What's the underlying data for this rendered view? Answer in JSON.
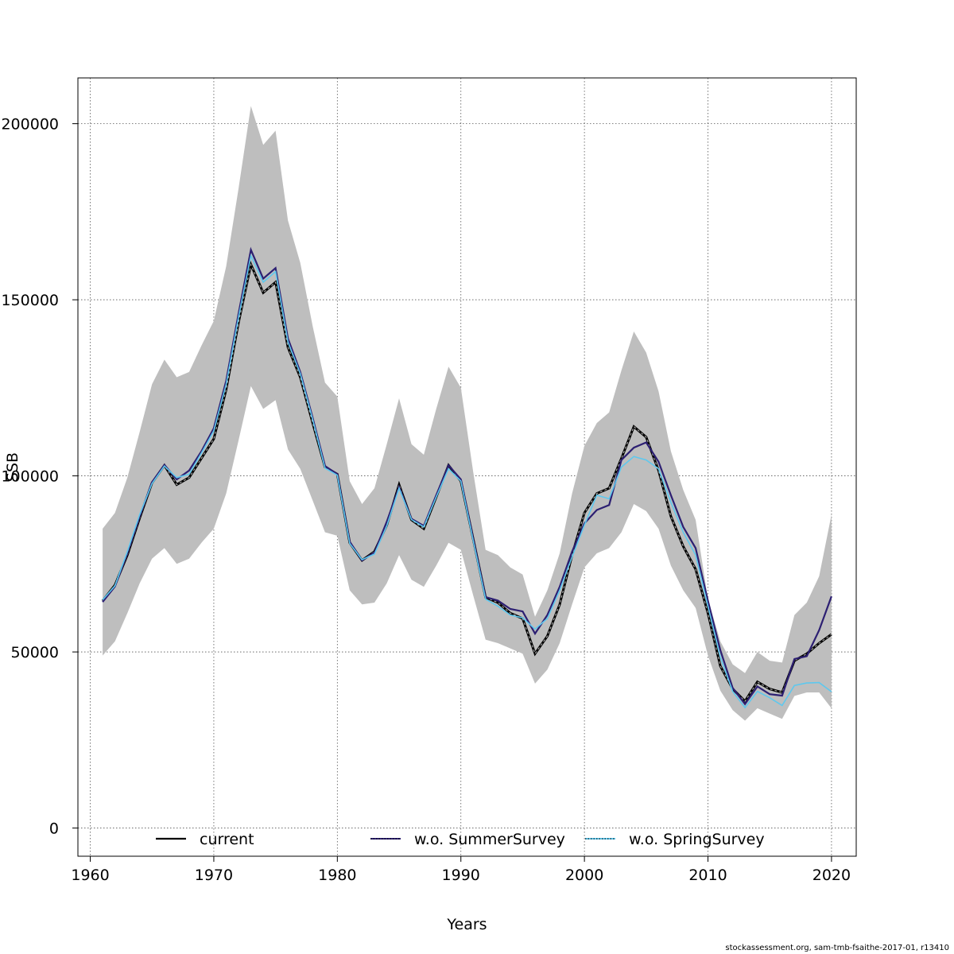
{
  "chart_data": {
    "type": "line",
    "xlabel": "Years",
    "ylabel": "SSB",
    "xlim": [
      1959,
      2022
    ],
    "ylim": [
      -8000,
      213000
    ],
    "grid": true,
    "legend_position": "bottom",
    "x_ticks": [
      1960,
      1970,
      1980,
      1990,
      2000,
      2010,
      2020
    ],
    "y_ticks": [
      0,
      50000,
      100000,
      150000,
      200000
    ],
    "x_tick_labels": [
      "1960",
      "1970",
      "1980",
      "1990",
      "2000",
      "2010",
      "2020"
    ],
    "y_tick_labels": [
      "0",
      "50000",
      "100000",
      "150000",
      "200000"
    ],
    "x": [
      1961,
      1962,
      1963,
      1964,
      1965,
      1966,
      1967,
      1968,
      1969,
      1970,
      1971,
      1972,
      1973,
      1974,
      1975,
      1976,
      1977,
      1978,
      1979,
      1980,
      1981,
      1982,
      1983,
      1984,
      1985,
      1986,
      1987,
      1988,
      1989,
      1990,
      1991,
      1992,
      1993,
      1994,
      1995,
      1996,
      1997,
      1998,
      1999,
      2000,
      2001,
      2002,
      2003,
      2004,
      2005,
      2006,
      2007,
      2008,
      2009,
      2010,
      2011,
      2012,
      2013,
      2014,
      2015,
      2016,
      2017,
      2018,
      2019,
      2020
    ],
    "band": {
      "color": "#bebebe",
      "upper": [
        85000,
        89500,
        99500,
        112500,
        126000,
        133000,
        128000,
        129500,
        137000,
        144000,
        159500,
        181500,
        205000,
        194000,
        198000,
        172500,
        160500,
        142500,
        126500,
        122500,
        98500,
        92000,
        96500,
        109000,
        122000,
        109000,
        106000,
        119000,
        131000,
        125000,
        101000,
        79000,
        77500,
        74000,
        72000,
        60000,
        67500,
        78000,
        95000,
        108500,
        115000,
        118000,
        130000,
        141000,
        135000,
        124000,
        107000,
        96000,
        87500,
        65000,
        53000,
        46500,
        44000,
        50000,
        47500,
        47000,
        60500,
        64000,
        71500,
        89000
      ],
      "lower": [
        49000,
        53000,
        61000,
        69500,
        76500,
        79500,
        75000,
        76500,
        81000,
        85000,
        95000,
        110000,
        125500,
        119000,
        121500,
        107500,
        102000,
        93000,
        84000,
        83000,
        67500,
        63500,
        64000,
        69500,
        77500,
        70500,
        68500,
        74500,
        81000,
        79000,
        66000,
        53500,
        52500,
        51000,
        49500,
        41000,
        45000,
        52500,
        63500,
        74000,
        78000,
        79500,
        84000,
        92000,
        90000,
        85000,
        74500,
        67500,
        62500,
        49000,
        39000,
        33500,
        30500,
        34000,
        32500,
        31000,
        37500,
        38500,
        38500,
        34000
      ]
    },
    "series": [
      {
        "name": "current",
        "color": "#000000",
        "dash": "solid",
        "values": [
          64500,
          69000,
          77500,
          88000,
          98000,
          103000,
          97500,
          99500,
          105000,
          110500,
          124500,
          143500,
          160000,
          152000,
          155000,
          136500,
          128000,
          115000,
          102500,
          100500,
          81000,
          76000,
          78500,
          86000,
          97500,
          87500,
          85000,
          94000,
          103000,
          98500,
          82000,
          65500,
          64000,
          61000,
          59500,
          49500,
          54500,
          63500,
          77500,
          89500,
          95000,
          96500,
          105000,
          114000,
          111000,
          101500,
          88500,
          80000,
          73500,
          61000,
          46000,
          39500,
          36000,
          41500,
          39500,
          38500,
          47500,
          49500,
          52500,
          55000
        ]
      },
      {
        "name": "w.o. SummerSurvey",
        "color": "#2c1f72",
        "dash": "solid",
        "values": [
          64200,
          68600,
          78000,
          88500,
          98200,
          103100,
          99000,
          101500,
          107000,
          113500,
          127000,
          146000,
          164200,
          156000,
          159000,
          139000,
          129500,
          116500,
          102800,
          100500,
          81300,
          76000,
          78200,
          87000,
          96800,
          87800,
          85800,
          94500,
          103000,
          99000,
          82000,
          65600,
          64600,
          62200,
          61500,
          55200,
          60500,
          68500,
          78500,
          86500,
          90300,
          91700,
          104500,
          108000,
          109500,
          104000,
          94500,
          85500,
          79500,
          64500,
          50500,
          39800,
          35200,
          40200,
          38000,
          37600,
          48000,
          48800,
          56200,
          65800
        ]
      },
      {
        "name": "w.o. SpringSurvey",
        "color": "#5ec8ee",
        "dash": "dotted",
        "values": [
          64800,
          68800,
          78500,
          89000,
          97800,
          102800,
          99500,
          100500,
          106500,
          112800,
          126000,
          145000,
          162500,
          155000,
          158000,
          138000,
          129000,
          116000,
          102200,
          100200,
          80800,
          76200,
          77800,
          85800,
          96500,
          87600,
          85500,
          94000,
          102000,
          98500,
          81500,
          65000,
          63000,
          60500,
          59700,
          56500,
          59500,
          67500,
          77000,
          86000,
          94500,
          93500,
          102500,
          105500,
          104500,
          102000,
          92500,
          84000,
          77500,
          63000,
          48500,
          38800,
          34200,
          38800,
          37000,
          34800,
          40500,
          41200,
          41300,
          38700
        ]
      }
    ],
    "legend": [
      "current",
      "w.o. SummerSurvey",
      "w.o. SpringSurvey"
    ]
  },
  "footer": "stockassessment.org, sam-tmb-fsaithe-2017-01, r13410"
}
